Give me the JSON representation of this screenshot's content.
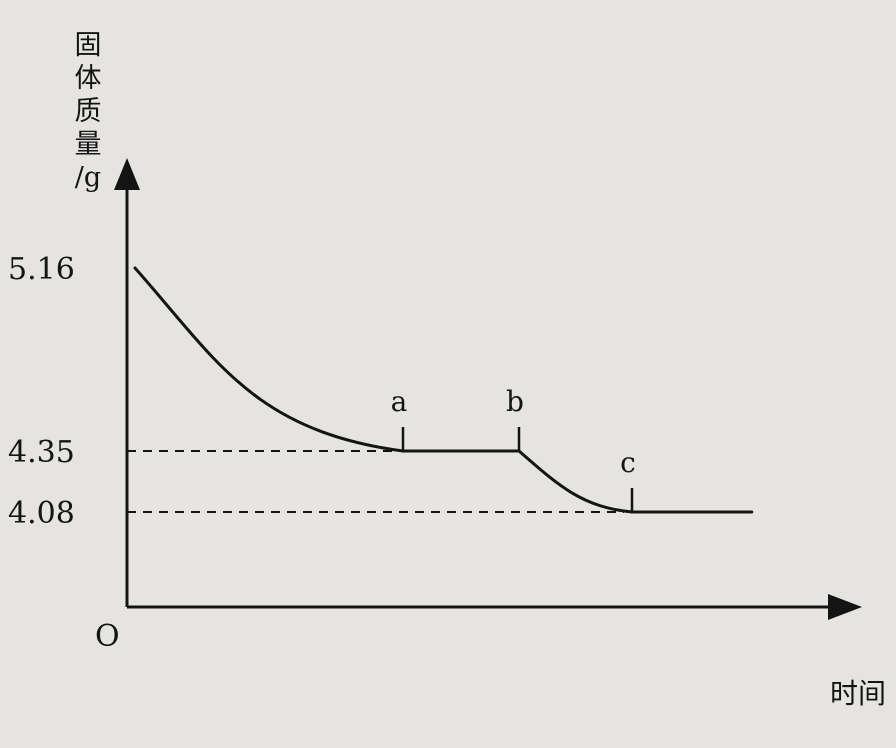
{
  "chart_data": {
    "type": "line",
    "ylabel_lines": [
      "固",
      "体",
      "质",
      "量",
      "/g"
    ],
    "xlabel": "时间",
    "origin_label": "O",
    "yticks": [
      "5.16",
      "4.35",
      "4.08"
    ],
    "ylim": [
      4.08,
      5.16
    ],
    "series": [
      {
        "points": [
          {
            "t": 0,
            "y": 5.16
          },
          {
            "t": 1,
            "y": 4.35
          },
          {
            "t": 2,
            "y": 4.35
          },
          {
            "t": 3,
            "y": 4.08
          },
          {
            "t": 4.06,
            "y": 4.08
          }
        ]
      }
    ],
    "point_labels": [
      {
        "label": "a",
        "t": 1
      },
      {
        "label": "b",
        "t": 2
      },
      {
        "label": "c",
        "t": 3
      }
    ],
    "reference_lines": [
      {
        "y": 4.35,
        "style": "dashed",
        "until_t": 1
      },
      {
        "y": 4.08,
        "style": "dashed",
        "until_t": 3
      }
    ],
    "colors": {
      "ink": "#141414",
      "background": "#e6e4e1"
    }
  }
}
